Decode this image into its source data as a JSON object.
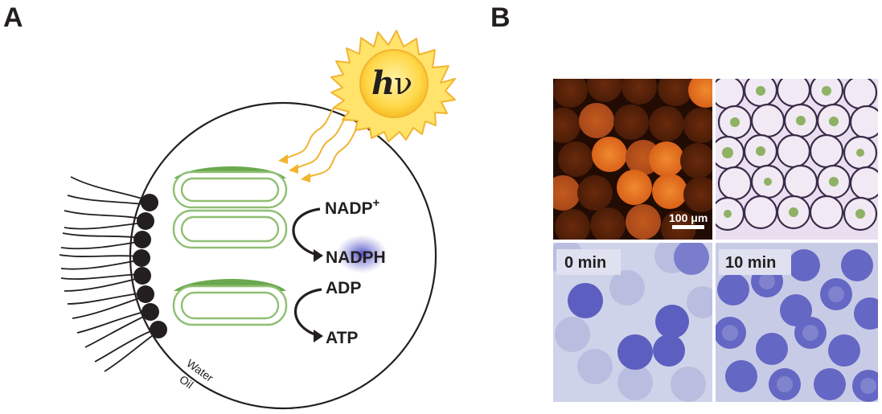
{
  "panel_a": {
    "label": "A",
    "sun_h": "h",
    "sun_nu": "ν",
    "nadp_plus": "NADP",
    "nadp_plus_sup": "+",
    "nadph": "NADPH",
    "adp": "ADP",
    "atp": "ATP",
    "water": "Water",
    "oil": "Oil"
  },
  "panel_b": {
    "label": "B",
    "scale_bar": "100 μm",
    "time_0": "0 min",
    "time_10": "10 min"
  },
  "colors": {
    "membrane": "#9cc27f",
    "thylakoid_cap": "#6aa84f",
    "sun_fill": "#ffd24a",
    "ray": "#f2b431",
    "stain_blue": "#5c5fbf",
    "droplet_orange": "#e8701c"
  }
}
